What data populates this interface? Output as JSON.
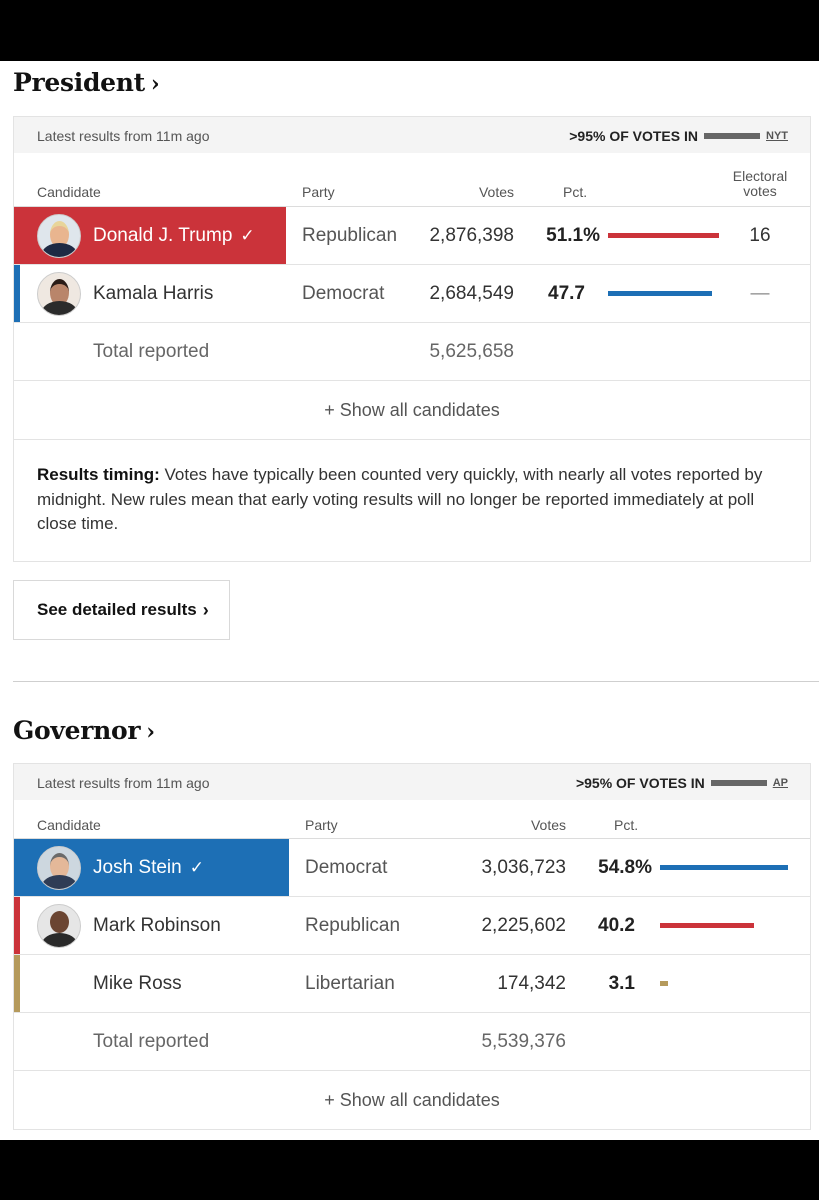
{
  "president": {
    "title": "President",
    "chevron": "›",
    "latest": "Latest results from 11m ago",
    "votes_in": ">95% OF VOTES IN",
    "source": "NYT",
    "headers": {
      "candidate": "Candidate",
      "party": "Party",
      "votes": "Votes",
      "pct": "Pct.",
      "electoral_1": "Electoral",
      "electoral_2": "votes"
    },
    "rows": [
      {
        "name": "Donald J. Trump",
        "party": "Republican",
        "votes": "2,876,398",
        "pct": "51.1%",
        "pct_value": 51.1,
        "electoral": "16",
        "winner": true,
        "color": "#cb333a"
      },
      {
        "name": "Kamala Harris",
        "party": "Democrat",
        "votes": "2,684,549",
        "pct": "47.7",
        "pct_value": 47.7,
        "electoral": "—",
        "winner": false,
        "color": "#1d6fb5"
      }
    ],
    "total_label": "Total reported",
    "total_votes": "5,625,658",
    "show_all": "+ Show all candidates",
    "timing_label": "Results timing:",
    "timing_text": " Votes have typically been counted very quickly, with nearly all votes reported by midnight. New rules mean that early voting results will no longer be reported immediately at poll close time.",
    "detail_button": "See detailed results",
    "detail_chevron": "›"
  },
  "governor": {
    "title": "Governor",
    "chevron": "›",
    "latest": "Latest results from 11m ago",
    "votes_in": ">95% OF VOTES IN",
    "source": "AP",
    "headers": {
      "candidate": "Candidate",
      "party": "Party",
      "votes": "Votes",
      "pct": "Pct."
    },
    "rows": [
      {
        "name": "Josh Stein",
        "party": "Democrat",
        "votes": "3,036,723",
        "pct": "54.8%",
        "pct_value": 54.8,
        "winner": true,
        "color": "#1d6fb5"
      },
      {
        "name": "Mark Robinson",
        "party": "Republican",
        "votes": "2,225,602",
        "pct": "40.2",
        "pct_value": 40.2,
        "winner": false,
        "color": "#cb333a"
      },
      {
        "name": "Mike Ross",
        "party": "Libertarian",
        "votes": "174,342",
        "pct": "3.1",
        "pct_value": 3.1,
        "winner": false,
        "color": "#b59a5c"
      }
    ],
    "total_label": "Total reported",
    "total_votes": "5,539,376",
    "show_all": "+ Show all candidates"
  },
  "icons": {
    "checkmark": "✓"
  },
  "colors": {
    "republican": "#cb333a",
    "democrat": "#1d6fb5",
    "libertarian": "#b59a5c"
  }
}
